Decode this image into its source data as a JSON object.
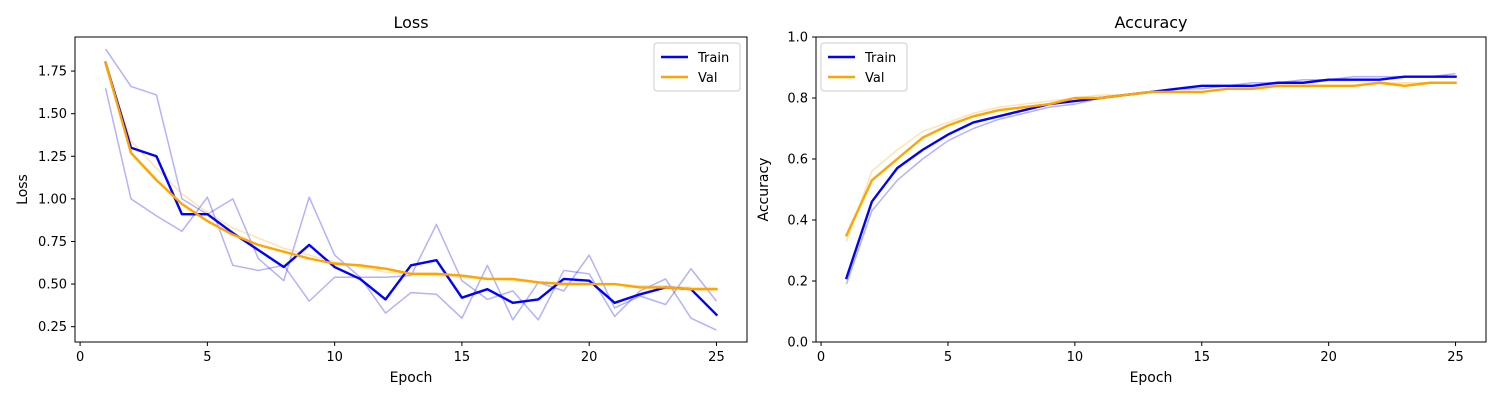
{
  "chart_data": [
    {
      "type": "line",
      "title": "Loss",
      "xlabel": "Epoch",
      "ylabel": "Loss",
      "xlim": [
        -0.2,
        26.2
      ],
      "ylim": [
        0.16,
        1.95
      ],
      "xticks": [
        0,
        5,
        10,
        15,
        20,
        25
      ],
      "yticks": [
        0.25,
        0.5,
        0.75,
        1.0,
        1.25,
        1.5,
        1.75
      ],
      "ytick_labels": [
        "0.25",
        "0.50",
        "0.75",
        "1.00",
        "1.25",
        "1.50",
        "1.75"
      ],
      "legend": "top-right",
      "x": [
        1,
        2,
        3,
        4,
        5,
        6,
        7,
        8,
        9,
        10,
        11,
        12,
        13,
        14,
        15,
        16,
        17,
        18,
        19,
        20,
        21,
        22,
        23,
        24,
        25
      ],
      "series": [
        {
          "name": "Train",
          "color": "#0000ff",
          "values": [
            1.8,
            1.3,
            1.25,
            0.91,
            0.91,
            0.8,
            0.7,
            0.6,
            0.73,
            0.6,
            0.53,
            0.41,
            0.61,
            0.64,
            0.42,
            0.47,
            0.39,
            0.41,
            0.53,
            0.52,
            0.39,
            0.44,
            0.48,
            0.47,
            0.32
          ]
        },
        {
          "name": "Val",
          "color": "#ffa500",
          "values": [
            1.8,
            1.27,
            1.11,
            0.97,
            0.87,
            0.79,
            0.73,
            0.69,
            0.65,
            0.62,
            0.61,
            0.59,
            0.56,
            0.56,
            0.55,
            0.53,
            0.53,
            0.51,
            0.5,
            0.5,
            0.5,
            0.48,
            0.48,
            0.47,
            0.47
          ]
        }
      ],
      "shadow_series": [
        {
          "color": "#0000ff",
          "values": [
            1.88,
            1.66,
            1.61,
            1.0,
            0.91,
            1.0,
            0.65,
            0.52,
            1.01,
            0.67,
            0.54,
            0.54,
            0.55,
            0.85,
            0.52,
            0.41,
            0.46,
            0.29,
            0.58,
            0.56,
            0.31,
            0.46,
            0.53,
            0.3,
            0.23
          ]
        },
        {
          "color": "#0000ff",
          "values": [
            1.65,
            1.0,
            0.9,
            0.81,
            1.01,
            0.61,
            0.58,
            0.61,
            0.4,
            0.54,
            0.54,
            0.33,
            0.45,
            0.44,
            0.3,
            0.61,
            0.29,
            0.51,
            0.46,
            0.67,
            0.36,
            0.43,
            0.38,
            0.59,
            0.4
          ]
        },
        {
          "color": "#ffa500",
          "values": [
            1.78,
            1.34,
            1.18,
            1.03,
            0.92,
            0.83,
            0.77,
            0.71,
            0.67,
            0.63,
            0.6,
            0.57,
            0.56,
            0.55,
            0.54,
            0.53,
            0.52,
            0.51,
            0.51,
            0.5,
            0.5,
            0.49,
            0.49,
            0.48,
            0.48
          ]
        }
      ]
    },
    {
      "type": "line",
      "title": "Accuracy",
      "xlabel": "Epoch",
      "ylabel": "Accuracy",
      "xlim": [
        -0.2,
        26.2
      ],
      "ylim": [
        0.0,
        1.0
      ],
      "xticks": [
        0,
        5,
        10,
        15,
        20,
        25
      ],
      "yticks": [
        0.0,
        0.2,
        0.4,
        0.6,
        0.8,
        1.0
      ],
      "ytick_labels": [
        "0.0",
        "0.2",
        "0.4",
        "0.6",
        "0.8",
        "1.0"
      ],
      "legend": "top-left",
      "x": [
        1,
        2,
        3,
        4,
        5,
        6,
        7,
        8,
        9,
        10,
        11,
        12,
        13,
        14,
        15,
        16,
        17,
        18,
        19,
        20,
        21,
        22,
        23,
        24,
        25
      ],
      "series": [
        {
          "name": "Train",
          "color": "#0000ff",
          "values": [
            0.21,
            0.46,
            0.57,
            0.63,
            0.68,
            0.72,
            0.74,
            0.76,
            0.78,
            0.79,
            0.8,
            0.81,
            0.82,
            0.83,
            0.84,
            0.84,
            0.84,
            0.85,
            0.85,
            0.86,
            0.86,
            0.86,
            0.87,
            0.87,
            0.87
          ]
        },
        {
          "name": "Val",
          "color": "#ffa500",
          "values": [
            0.35,
            0.53,
            0.6,
            0.67,
            0.71,
            0.74,
            0.76,
            0.77,
            0.78,
            0.8,
            0.8,
            0.81,
            0.82,
            0.82,
            0.82,
            0.83,
            0.83,
            0.84,
            0.84,
            0.84,
            0.84,
            0.85,
            0.84,
            0.85,
            0.85
          ]
        }
      ],
      "shadow_series": [
        {
          "color": "#0000ff",
          "values": [
            0.19,
            0.43,
            0.53,
            0.6,
            0.66,
            0.7,
            0.73,
            0.75,
            0.77,
            0.78,
            0.8,
            0.81,
            0.82,
            0.83,
            0.83,
            0.84,
            0.85,
            0.85,
            0.86,
            0.86,
            0.87,
            0.87,
            0.87,
            0.87,
            0.88
          ]
        },
        {
          "color": "#ffa500",
          "values": [
            0.33,
            0.56,
            0.63,
            0.69,
            0.72,
            0.75,
            0.77,
            0.78,
            0.79,
            0.8,
            0.81,
            0.81,
            0.82,
            0.82,
            0.82,
            0.83,
            0.83,
            0.84,
            0.84,
            0.84,
            0.84,
            0.85,
            0.85,
            0.85,
            0.85
          ]
        }
      ]
    }
  ]
}
